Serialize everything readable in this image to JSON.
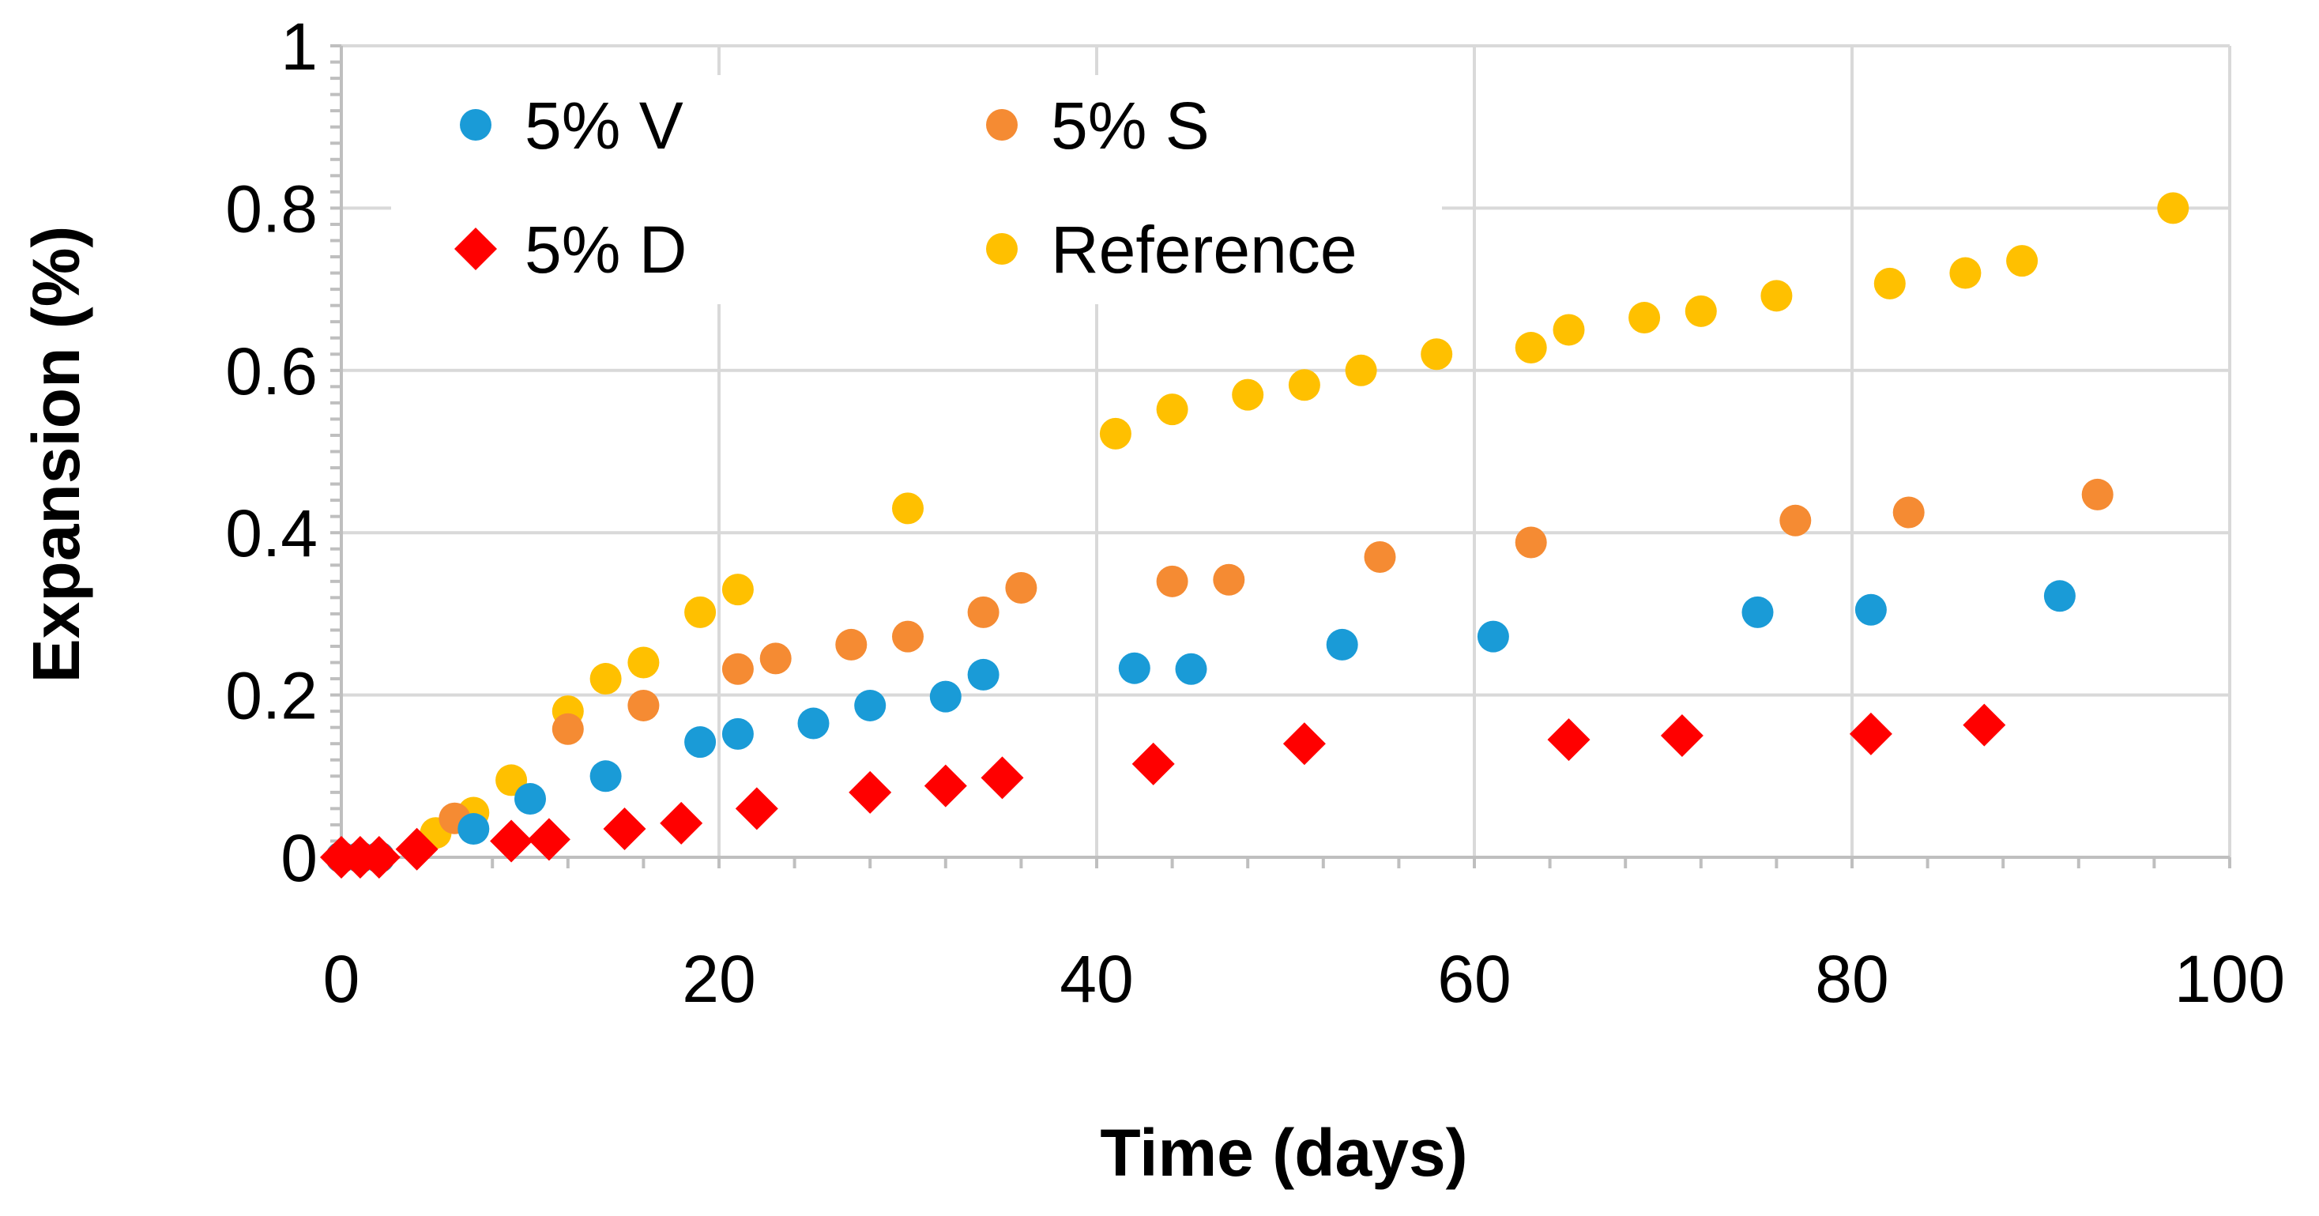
{
  "chart_data": {
    "type": "scatter",
    "title": "",
    "xlabel": "Time (days)",
    "ylabel": "Expansion (%)",
    "xlim": [
      0,
      100
    ],
    "ylim": [
      0,
      1
    ],
    "x_ticks": [
      "0",
      "20",
      "40",
      "60",
      "80",
      "100"
    ],
    "y_ticks": [
      "0",
      "0.2",
      "0.4",
      "0.6",
      "0.8",
      "1"
    ],
    "grid": true,
    "legend_position": "top-left",
    "series": [
      {
        "name": "5% V",
        "color": "#1a9bd7",
        "marker": "circle",
        "x": [
          0,
          1,
          2,
          7,
          10,
          14,
          19,
          21,
          25,
          28,
          32,
          34,
          42,
          45,
          53,
          61,
          75,
          81,
          91
        ],
        "y": [
          0,
          0,
          0,
          0.035,
          0.072,
          0.1,
          0.142,
          0.152,
          0.165,
          0.187,
          0.198,
          0.225,
          0.233,
          0.232,
          0.262,
          0.272,
          0.302,
          0.305,
          0.322
        ]
      },
      {
        "name": "5% S",
        "color": "#f58b33",
        "marker": "circle",
        "x": [
          0,
          1,
          2,
          6,
          12,
          16,
          21,
          23,
          27,
          30,
          34,
          36,
          44,
          47,
          55,
          63,
          77,
          83,
          93
        ],
        "y": [
          0,
          0,
          0,
          0.048,
          0.158,
          0.187,
          0.232,
          0.245,
          0.262,
          0.272,
          0.302,
          0.332,
          0.34,
          0.342,
          0.37,
          0.388,
          0.415,
          0.425,
          0.447
        ]
      },
      {
        "name": "5% D",
        "color": "#ff0000",
        "marker": "diamond",
        "x": [
          0,
          1,
          2,
          4,
          9,
          11,
          15,
          18,
          22,
          28,
          32,
          35,
          43,
          51,
          65,
          71,
          81,
          87
        ],
        "y": [
          0,
          0,
          0,
          0.01,
          0.02,
          0.022,
          0.035,
          0.042,
          0.06,
          0.08,
          0.088,
          0.098,
          0.115,
          0.14,
          0.145,
          0.15,
          0.152,
          0.163
        ]
      },
      {
        "name": "Reference",
        "color": "#ffc000",
        "marker": "circle",
        "x": [
          0,
          1,
          2,
          5,
          7,
          9,
          12,
          14,
          16,
          19,
          21,
          30,
          41,
          44,
          48,
          51,
          54,
          58,
          63,
          65,
          69,
          72,
          76,
          82,
          86,
          89,
          97
        ],
        "y": [
          0,
          0,
          0,
          0.03,
          0.055,
          0.095,
          0.18,
          0.22,
          0.24,
          0.302,
          0.33,
          0.43,
          0.522,
          0.552,
          0.57,
          0.582,
          0.6,
          0.62,
          0.628,
          0.65,
          0.665,
          0.673,
          0.692,
          0.707,
          0.72,
          0.735,
          0.8
        ]
      }
    ]
  }
}
